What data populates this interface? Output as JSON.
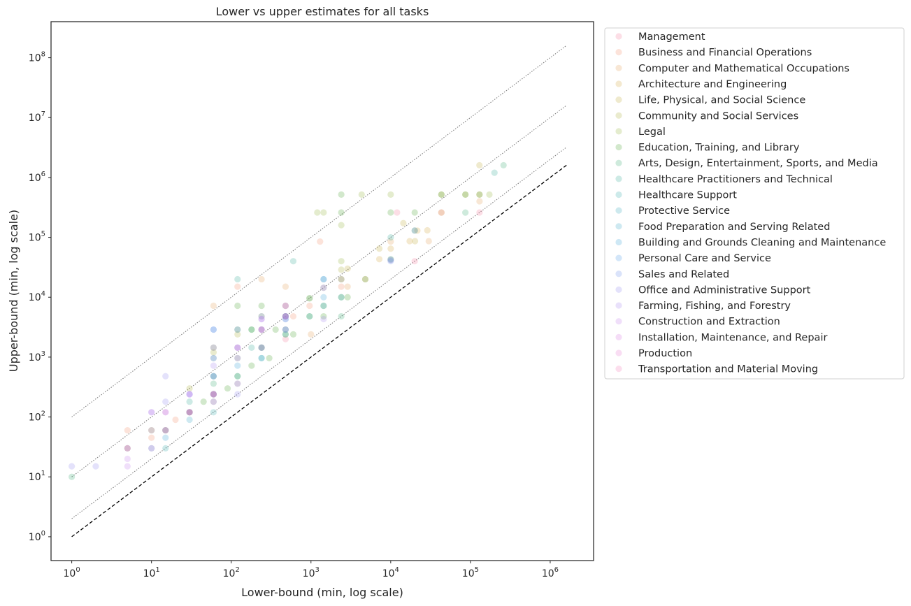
{
  "chart_data": {
    "type": "scatter",
    "title": "Lower vs upper estimates for all tasks",
    "xlabel": "Lower-bound (min, log scale)",
    "ylabel": "Upper-bound (min, log scale)",
    "xscale": "log",
    "yscale": "log",
    "xlim": [
      0.55,
      3500000
    ],
    "ylim": [
      0.4,
      400000000
    ],
    "x_ticks": [
      {
        "base": "10",
        "exp": "0",
        "value": 1
      },
      {
        "base": "10",
        "exp": "1",
        "value": 10
      },
      {
        "base": "10",
        "exp": "2",
        "value": 100
      },
      {
        "base": "10",
        "exp": "3",
        "value": 1000
      },
      {
        "base": "10",
        "exp": "4",
        "value": 10000
      },
      {
        "base": "10",
        "exp": "5",
        "value": 100000
      },
      {
        "base": "10",
        "exp": "6",
        "value": 1000000
      }
    ],
    "y_ticks": [
      {
        "base": "10",
        "exp": "0",
        "value": 1
      },
      {
        "base": "10",
        "exp": "1",
        "value": 10
      },
      {
        "base": "10",
        "exp": "2",
        "value": 100
      },
      {
        "base": "10",
        "exp": "3",
        "value": 1000
      },
      {
        "base": "10",
        "exp": "4",
        "value": 10000
      },
      {
        "base": "10",
        "exp": "5",
        "value": 100000
      },
      {
        "base": "10",
        "exp": "6",
        "value": 1000000
      },
      {
        "base": "10",
        "exp": "7",
        "value": 10000000
      },
      {
        "base": "10",
        "exp": "8",
        "value": 100000000
      }
    ],
    "reference_lines": [
      {
        "name": "y = x",
        "multiplier": 1,
        "style": "dashed",
        "color": "#000000",
        "x_range": [
          1,
          1600000
        ]
      },
      {
        "name": "y = 2x",
        "multiplier": 2,
        "style": "dotted",
        "color": "#808080",
        "x_range": [
          1,
          1600000
        ]
      },
      {
        "name": "y = 10x",
        "multiplier": 10,
        "style": "dotted",
        "color": "#808080",
        "x_range": [
          1,
          1600000
        ]
      },
      {
        "name": "y = 100x",
        "multiplier": 100,
        "style": "dotted",
        "color": "#808080",
        "x_range": [
          1,
          1600000
        ]
      }
    ],
    "legend_position": "outside-right",
    "series": [
      {
        "name": "Management",
        "color": "#f37a9a",
        "points": [
          [
            10000,
            42000
          ],
          [
            12000,
            260000
          ],
          [
            20000,
            40000
          ],
          [
            43200,
            260000
          ],
          [
            130000,
            260000
          ],
          [
            2400,
            20000
          ],
          [
            480,
            2000
          ]
        ]
      },
      {
        "name": "Business and Financial Operations",
        "color": "#f2906c",
        "points": [
          [
            1300,
            85000
          ],
          [
            120,
            15000
          ],
          [
            600,
            4800
          ],
          [
            5,
            60
          ],
          [
            10,
            45
          ],
          [
            20,
            90
          ],
          [
            960,
            7200
          ],
          [
            2400,
            15000
          ]
        ]
      },
      {
        "name": "Computer and Mathematical Occupations",
        "color": "#e59e58",
        "points": [
          [
            60,
            7200
          ],
          [
            240,
            20000
          ],
          [
            480,
            15000
          ],
          [
            1000,
            2400
          ],
          [
            4800,
            20000
          ],
          [
            10000,
            85000
          ],
          [
            30000,
            86400
          ],
          [
            130000,
            400000
          ],
          [
            2880,
            15000
          ]
        ]
      },
      {
        "name": "Architecture and Engineering",
        "color": "#d2a640",
        "points": [
          [
            10000,
            64800
          ],
          [
            21600,
            129600
          ],
          [
            43200,
            259200
          ],
          [
            129600,
            518400
          ],
          [
            28800,
            131000
          ],
          [
            7200,
            43200
          ],
          [
            17280,
            86400
          ]
        ]
      },
      {
        "name": "Life, Physical, and Social Science",
        "color": "#c0ac3a",
        "points": [
          [
            14400,
            172800
          ],
          [
            20160,
            86400
          ],
          [
            43200,
            518400
          ],
          [
            86400,
            518400
          ],
          [
            129600,
            1600000
          ],
          [
            2880,
            30000
          ],
          [
            7200,
            64800
          ]
        ]
      },
      {
        "name": "Community and Social Services",
        "color": "#abb13a",
        "points": [
          [
            30,
            300
          ],
          [
            60,
            1200
          ],
          [
            120,
            2400
          ],
          [
            240,
            4800
          ],
          [
            480,
            7200
          ],
          [
            960,
            9600
          ],
          [
            2400,
            28800
          ]
        ]
      },
      {
        "name": "Legal",
        "color": "#93b43a",
        "points": [
          [
            1440,
            260000
          ],
          [
            2400,
            160000
          ],
          [
            4320,
            518400
          ],
          [
            10000,
            518400
          ],
          [
            1200,
            260000
          ],
          [
            2400,
            40000
          ],
          [
            172800,
            518400
          ]
        ]
      },
      {
        "name": "Education, Training, and Library",
        "color": "#4aa534",
        "points": [
          [
            60,
            240
          ],
          [
            60,
            480
          ],
          [
            60,
            1440
          ],
          [
            120,
            480
          ],
          [
            120,
            2880
          ],
          [
            120,
            7200
          ],
          [
            180,
            720
          ],
          [
            180,
            2880
          ],
          [
            240,
            1440
          ],
          [
            240,
            7200
          ],
          [
            300,
            960
          ],
          [
            360,
            2880
          ],
          [
            480,
            2400
          ],
          [
            480,
            4800
          ],
          [
            600,
            2400
          ],
          [
            960,
            4800
          ],
          [
            1440,
            4800
          ],
          [
            1440,
            7200
          ],
          [
            2400,
            10000
          ],
          [
            2400,
            20000
          ],
          [
            2400,
            260000
          ],
          [
            2880,
            10000
          ],
          [
            4800,
            20000
          ],
          [
            10000,
            260000
          ],
          [
            20000,
            260000
          ],
          [
            43200,
            518400
          ],
          [
            86400,
            518400
          ],
          [
            130000,
            518400
          ],
          [
            5,
            30
          ],
          [
            10,
            60
          ],
          [
            15,
            60
          ],
          [
            30,
            120
          ],
          [
            45,
            180
          ],
          [
            90,
            300
          ],
          [
            2400,
            518400
          ],
          [
            20000,
            130000
          ]
        ]
      },
      {
        "name": "Arts, Design, Entertainment, Sports, and Media",
        "color": "#3dac75",
        "points": [
          [
            1,
            10
          ],
          [
            30,
            120
          ],
          [
            60,
            360
          ],
          [
            120,
            960
          ],
          [
            180,
            2880
          ],
          [
            240,
            2880
          ],
          [
            480,
            2880
          ],
          [
            960,
            9600
          ],
          [
            2400,
            4800
          ],
          [
            10000,
            43200
          ],
          [
            86400,
            259200
          ],
          [
            260000,
            1600000
          ]
        ]
      },
      {
        "name": "Healthcare Practitioners and Technical",
        "color": "#36ad99",
        "points": [
          [
            120,
            20000
          ],
          [
            600,
            40000
          ],
          [
            1440,
            14400
          ],
          [
            180,
            1440
          ],
          [
            60,
            960
          ],
          [
            30,
            180
          ],
          [
            10000,
            100000
          ],
          [
            200000,
            1200000
          ]
        ]
      },
      {
        "name": "Healthcare Support",
        "color": "#37aaac",
        "points": [
          [
            15,
            30
          ],
          [
            60,
            120
          ],
          [
            120,
            480
          ],
          [
            240,
            960
          ],
          [
            480,
            2400
          ],
          [
            960,
            4800
          ]
        ]
      },
      {
        "name": "Protective Service",
        "color": "#39a8bb",
        "points": [
          [
            15,
            60
          ],
          [
            60,
            240
          ],
          [
            240,
            1440
          ],
          [
            480,
            4800
          ],
          [
            1440,
            20000
          ],
          [
            2400,
            10000
          ]
        ]
      },
      {
        "name": "Food Preparation and Serving Related",
        "color": "#3aa6c8",
        "points": [
          [
            10,
            30
          ],
          [
            30,
            90
          ],
          [
            60,
            180
          ],
          [
            120,
            360
          ],
          [
            240,
            960
          ],
          [
            480,
            2880
          ],
          [
            1440,
            7200
          ]
        ]
      },
      {
        "name": "Building and Grounds Cleaning and Maintenance",
        "color": "#3da3d6",
        "points": [
          [
            15,
            45
          ],
          [
            30,
            120
          ],
          [
            60,
            240
          ],
          [
            120,
            720
          ],
          [
            240,
            1440
          ],
          [
            480,
            4320
          ],
          [
            1440,
            10000
          ]
        ]
      },
      {
        "name": "Personal Care and Service",
        "color": "#4f9be6",
        "points": [
          [
            60,
            2880
          ],
          [
            60,
            480
          ],
          [
            120,
            1440
          ],
          [
            480,
            4800
          ],
          [
            1440,
            20000
          ],
          [
            10000,
            42000
          ]
        ]
      },
      {
        "name": "Sales and Related",
        "color": "#6b91ec",
        "points": [
          [
            60,
            480
          ],
          [
            60,
            2880
          ],
          [
            120,
            2880
          ],
          [
            240,
            4800
          ],
          [
            480,
            4800
          ],
          [
            10000,
            40000
          ],
          [
            20000,
            130000
          ]
        ]
      },
      {
        "name": "Office and Administrative Support",
        "color": "#948bee",
        "points": [
          [
            1,
            15
          ],
          [
            2,
            15
          ],
          [
            15,
            480
          ],
          [
            15,
            180
          ],
          [
            120,
            240
          ],
          [
            30,
            240
          ],
          [
            60,
            960
          ],
          [
            240,
            2880
          ],
          [
            480,
            4320
          ]
        ]
      },
      {
        "name": "Farming, Fishing, and Forestry",
        "color": "#a988ee",
        "points": [
          [
            10,
            120
          ],
          [
            30,
            240
          ],
          [
            60,
            720
          ],
          [
            240,
            4320
          ],
          [
            480,
            7200
          ],
          [
            1440,
            4320
          ],
          [
            15,
            120
          ]
        ]
      },
      {
        "name": "Construction and Extraction",
        "color": "#c280ea",
        "points": [
          [
            5,
            20
          ],
          [
            5,
            15
          ],
          [
            10,
            120
          ],
          [
            30,
            240
          ],
          [
            60,
            1440
          ],
          [
            120,
            1440
          ],
          [
            240,
            4320
          ],
          [
            480,
            2880
          ]
        ]
      },
      {
        "name": "Installation, Maintenance, and Repair",
        "color": "#d878e0",
        "points": [
          [
            5,
            30
          ],
          [
            10,
            30
          ],
          [
            15,
            60
          ],
          [
            30,
            120
          ],
          [
            60,
            240
          ],
          [
            120,
            960
          ],
          [
            240,
            2880
          ],
          [
            480,
            4800
          ]
        ]
      },
      {
        "name": "Production",
        "color": "#e977cf",
        "points": [
          [
            5,
            30
          ],
          [
            10,
            60
          ],
          [
            15,
            120
          ],
          [
            30,
            120
          ],
          [
            60,
            240
          ],
          [
            120,
            1440
          ],
          [
            240,
            2880
          ],
          [
            480,
            7200
          ],
          [
            1440,
            14400
          ]
        ]
      },
      {
        "name": "Transportation and Material Moving",
        "color": "#f27ab6",
        "points": [
          [
            15,
            60
          ],
          [
            30,
            120
          ],
          [
            60,
            180
          ],
          [
            60,
            240
          ],
          [
            120,
            360
          ],
          [
            240,
            1440
          ],
          [
            480,
            4800
          ]
        ]
      }
    ]
  }
}
